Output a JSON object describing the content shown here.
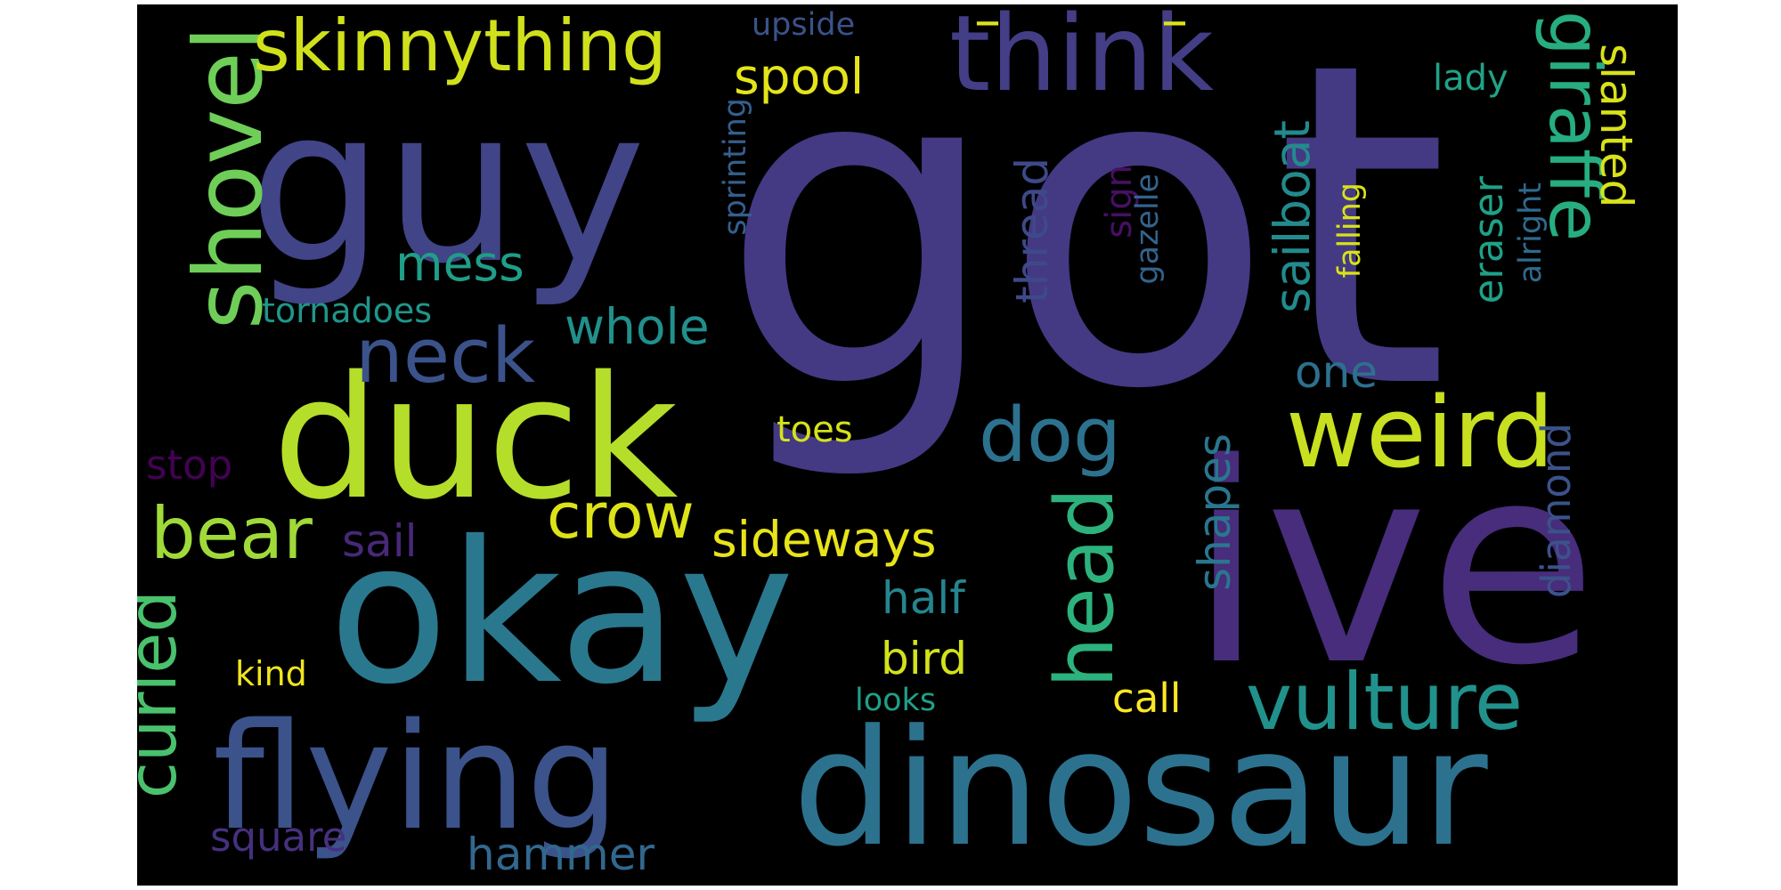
{
  "words": [
    {
      "key": "got",
      "text": "got",
      "color": "#443983"
    },
    {
      "key": "ive",
      "text": "ive",
      "color": "#472d7b"
    },
    {
      "key": "guy",
      "text": "guy",
      "color": "#414487"
    },
    {
      "key": "okay",
      "text": "okay",
      "color": "#2a788e"
    },
    {
      "key": "duck",
      "text": "duck",
      "color": "#b5de2b"
    },
    {
      "key": "dinosaur",
      "text": "dinosaur",
      "color": "#2c728e"
    },
    {
      "key": "flying",
      "text": "flying",
      "color": "#3b528b"
    },
    {
      "key": "think",
      "text": "think",
      "color": "#433e85"
    },
    {
      "key": "weird",
      "text": "weird",
      "color": "#c8e020"
    },
    {
      "key": "vulture",
      "text": "vulture",
      "color": "#21918c"
    },
    {
      "key": "giraffe",
      "text": "giraffe",
      "color": "#27ad81"
    },
    {
      "key": "shovel",
      "text": "shovel",
      "color": "#6ece58"
    },
    {
      "key": "skinnything",
      "text": "skinnything",
      "color": "#d0e11c"
    },
    {
      "key": "neck",
      "text": "neck",
      "color": "#3b528b"
    },
    {
      "key": "dog",
      "text": "dog",
      "color": "#2c728e"
    },
    {
      "key": "head",
      "text": "head",
      "color": "#2db27d"
    },
    {
      "key": "bear",
      "text": "bear",
      "color": "#a0da39"
    },
    {
      "key": "crow",
      "text": "crow",
      "color": "#dde318"
    },
    {
      "key": "curled",
      "text": "curled",
      "color": "#4ac16d"
    },
    {
      "key": "mess",
      "text": "mess",
      "color": "#1f9e89"
    },
    {
      "key": "whole",
      "text": "whole",
      "color": "#21908d"
    },
    {
      "key": "spool",
      "text": "spool",
      "color": "#e5e419"
    },
    {
      "key": "sideways",
      "text": "sideways",
      "color": "#e7e419"
    },
    {
      "key": "shapes",
      "text": "shapes",
      "color": "#2a768e"
    },
    {
      "key": "sailboat",
      "text": "sailboat",
      "color": "#238a8d"
    },
    {
      "key": "slanted",
      "text": "slanted",
      "color": "#d8e219"
    },
    {
      "key": "thread",
      "text": "thread",
      "color": "#3e4989"
    },
    {
      "key": "sail",
      "text": "sail",
      "color": "#482878"
    },
    {
      "key": "half",
      "text": "half",
      "color": "#25858e"
    },
    {
      "key": "bird",
      "text": "bird",
      "color": "#d2e21b"
    },
    {
      "key": "eraser",
      "text": "eraser",
      "color": "#1fa187"
    },
    {
      "key": "diamond",
      "text": "diamond",
      "color": "#3b528b"
    },
    {
      "key": "one",
      "text": "one",
      "color": "#2c718e"
    },
    {
      "key": "call",
      "text": "call",
      "color": "#fde725"
    },
    {
      "key": "square",
      "text": "square",
      "color": "#46307e"
    },
    {
      "key": "hammer",
      "text": "hammer",
      "color": "#31688e"
    },
    {
      "key": "stop",
      "text": "stop",
      "color": "#440154"
    },
    {
      "key": "tornadoes",
      "text": "tornadoes",
      "color": "#1f968b"
    },
    {
      "key": "toes",
      "text": "toes",
      "color": "#d5e21a"
    },
    {
      "key": "kind",
      "text": "kind",
      "color": "#f1e51d"
    },
    {
      "key": "looks",
      "text": "looks",
      "color": "#1fa088"
    },
    {
      "key": "sprinting",
      "text": "sprinting",
      "color": "#355f8d"
    },
    {
      "key": "upside",
      "text": "upside",
      "color": "#3b528b"
    },
    {
      "key": "sign",
      "text": "sign",
      "color": "#471063"
    },
    {
      "key": "gazelle",
      "text": "gazelle",
      "color": "#33638d"
    },
    {
      "key": "falling",
      "text": "falling",
      "color": "#d8e219"
    },
    {
      "key": "alright",
      "text": "alright",
      "color": "#306a8e"
    },
    {
      "key": "lady",
      "text": "lady",
      "color": "#20a386"
    },
    {
      "key": "dash1",
      "text": "–",
      "color": "#dde318"
    },
    {
      "key": "dash2",
      "text": "–",
      "color": "#dde318"
    }
  ]
}
